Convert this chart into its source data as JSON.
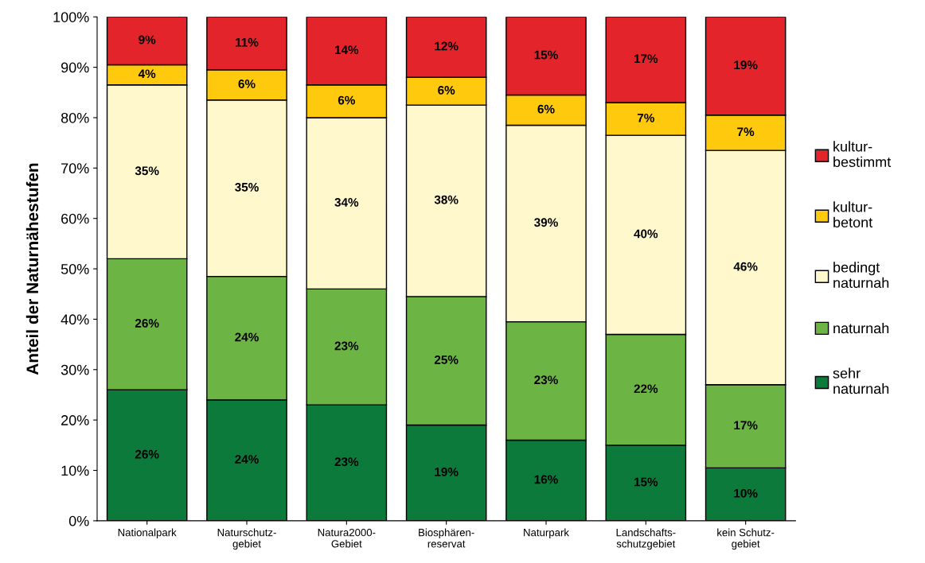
{
  "chart_data": {
    "type": "bar",
    "stacked": true,
    "ylabel": "Anteil der Naturnähestufen",
    "categories": [
      "Nationalpark",
      "Naturschutz-\ngebiet",
      "Natura2000-\nGebiet",
      "Biosphären-\nreservat",
      "Naturpark",
      "Landschafts-\nschutzgebiet",
      "kein Schutz-\ngebiet"
    ],
    "series": [
      {
        "name": "sehr\nnaturnah",
        "color": "#0b7a3b",
        "values": [
          26,
          24,
          23,
          19,
          16,
          15,
          10.5
        ],
        "value_labels": [
          "26%",
          "24%",
          "23%",
          "19%",
          "16%",
          "15%",
          "10%"
        ]
      },
      {
        "name": "naturnah",
        "color": "#6cb545",
        "values": [
          26,
          24.5,
          23,
          25.5,
          23.5,
          22,
          16.5
        ],
        "value_labels": [
          "26%",
          "24%",
          "23%",
          "25%",
          "23%",
          "22%",
          "17%"
        ]
      },
      {
        "name": "bedingt\nnaturnah",
        "color": "#fff8cc",
        "values": [
          34.5,
          35,
          34,
          38,
          39,
          39.5,
          46.5
        ],
        "value_labels": [
          "35%",
          "35%",
          "34%",
          "38%",
          "39%",
          "40%",
          "46%"
        ]
      },
      {
        "name": "kultur-\nbetont",
        "color": "#ffc90e",
        "values": [
          4,
          6,
          6.5,
          5.5,
          6,
          6.5,
          7
        ],
        "value_labels": [
          "4%",
          "6%",
          "6%",
          "6%",
          "6%",
          "7%",
          "7%"
        ]
      },
      {
        "name": "kultur-\nbestimmt",
        "color": "#e3242b",
        "values": [
          9.5,
          10.5,
          13.5,
          12,
          15.5,
          17,
          19.5
        ],
        "value_labels": [
          "9%",
          "11%",
          "14%",
          "12%",
          "15%",
          "17%",
          "19%"
        ]
      }
    ],
    "ylim": [
      0,
      100
    ],
    "yticks": [
      {
        "value": 0,
        "label": "0%"
      },
      {
        "value": 10,
        "label": "10%"
      },
      {
        "value": 20,
        "label": "20%"
      },
      {
        "value": 30,
        "label": "30%"
      },
      {
        "value": 40,
        "label": "40%"
      },
      {
        "value": 50,
        "label": "50%"
      },
      {
        "value": 60,
        "label": "60%"
      },
      {
        "value": 70,
        "label": "70%"
      },
      {
        "value": 80,
        "label": "80%"
      },
      {
        "value": 90,
        "label": "90%"
      },
      {
        "value": 100,
        "label": "100%"
      }
    ],
    "grid": false,
    "legend": "right"
  }
}
